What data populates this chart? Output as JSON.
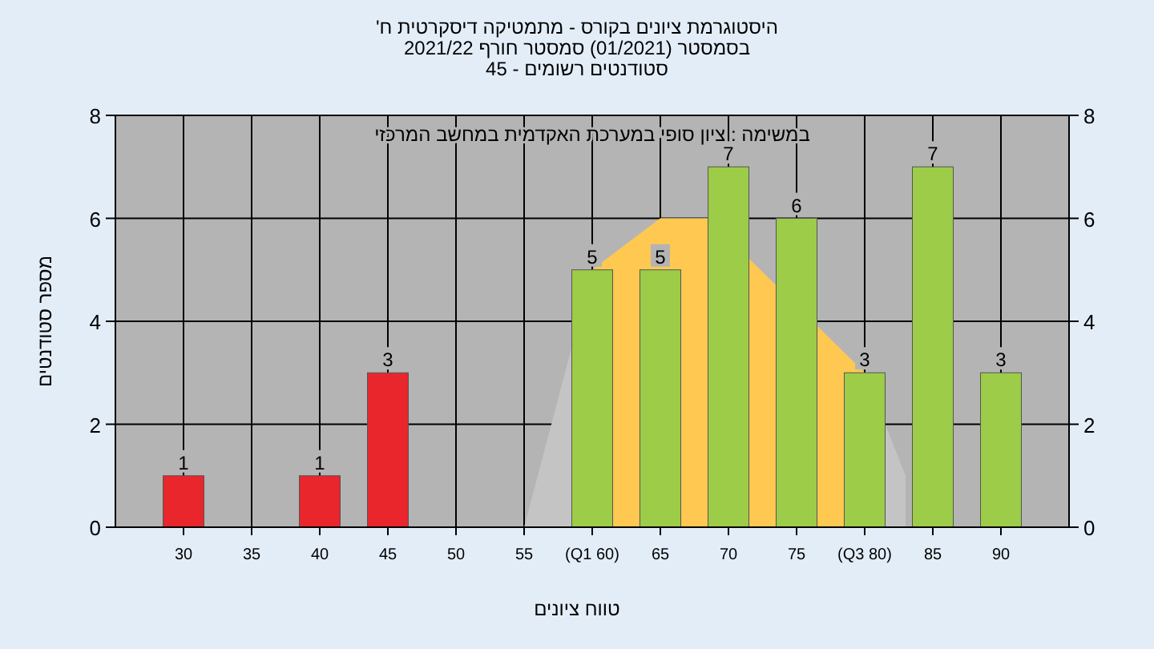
{
  "chart_data": {
    "type": "bar",
    "title": "היסטוגרמת ציונים בקורס - מתמטיקה דיסקרטית ח'",
    "subtitle": "בסמסטר (01/2021) סמסטר חורף 2021/22\nסטודנטים רשומים - 45",
    "xlabel": "טווח ציונים",
    "ylabel": "מספר סטודנטים",
    "annotations": [
      "במשימה : ציון סופי במערכת האקדמית במחשב המרכזי"
    ],
    "xlim": [
      25,
      95
    ],
    "xticks": [
      30,
      35,
      40,
      45,
      50,
      55,
      {
        "value": 60,
        "label": "(Q1 60)"
      },
      65,
      70,
      75,
      {
        "value": 80,
        "label": "(Q3 80)"
      },
      85,
      90
    ],
    "ylim": [
      0,
      8
    ],
    "yticks": [
      0,
      2,
      4,
      6,
      8
    ],
    "y2lim": [
      0,
      8
    ],
    "y2ticks": [
      0,
      2,
      4,
      6,
      8
    ],
    "grid": true,
    "series": [
      {
        "type": "area",
        "color": "#c4c4c4",
        "x": [
          55,
          60,
          65,
          68.5,
          80,
          83
        ],
        "values": [
          0,
          5,
          6,
          6,
          3,
          1
        ]
      },
      {
        "type": "area",
        "color": "#ffc850",
        "x": [
          60,
          65,
          68.5,
          80
        ],
        "values": [
          5,
          6,
          6,
          3
        ]
      },
      {
        "x": [
          30,
          40,
          45,
          60,
          65,
          70,
          75,
          80,
          85,
          90
        ],
        "values": [
          1,
          1,
          3,
          5,
          5,
          7,
          6,
          3,
          7,
          3
        ],
        "value_labels": [
          "1",
          "1",
          "3",
          "5",
          "5",
          "7",
          "6",
          "3",
          "7",
          "3"
        ],
        "colors": [
          "#e8262b",
          "#e8262b",
          "#e8262b",
          "#9ccc48",
          "#9ccc48",
          "#9ccc48",
          "#9ccc48",
          "#9ccc48",
          "#9ccc48",
          "#9ccc48"
        ]
      }
    ]
  }
}
